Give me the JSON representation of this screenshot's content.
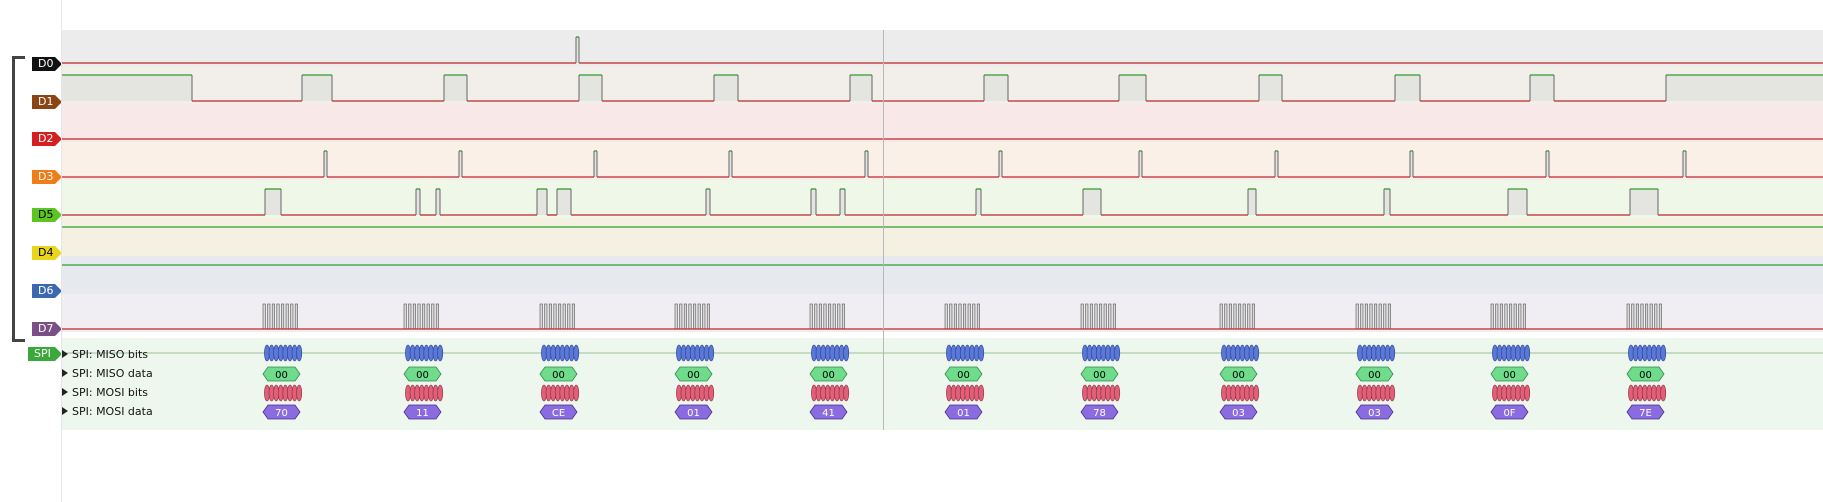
{
  "channels": [
    {
      "id": "D0",
      "color": "#111111",
      "bg": "#ececec"
    },
    {
      "id": "D1",
      "color": "#8b4513",
      "bg": "#f2eeea"
    },
    {
      "id": "D2",
      "color": "#d42020",
      "bg": "#f9e8e8"
    },
    {
      "id": "D3",
      "color": "#ef7d1a",
      "bg": "#fbf0e8"
    },
    {
      "id": "D5",
      "color": "#5cc520",
      "bg": "#eef7e8"
    },
    {
      "id": "D4",
      "color": "#e8d51c",
      "bg": "#f4f1e2"
    },
    {
      "id": "D6",
      "color": "#3c68b0",
      "bg": "#e6e9ee"
    },
    {
      "id": "D7",
      "color": "#7a4f86",
      "bg": "#f0eef2"
    }
  ],
  "spi": {
    "tag": "SPI",
    "tag_color": "#3aa83a",
    "rows": [
      {
        "label": "SPI: MISO bits"
      },
      {
        "label": "SPI: MISO data"
      },
      {
        "label": "SPI: MOSI bits"
      },
      {
        "label": "SPI: MOSI data"
      }
    ],
    "miso_data": [
      "00",
      "00",
      "00",
      "00",
      "00",
      "00",
      "00",
      "00",
      "00",
      "00",
      "00"
    ],
    "mosi_data": [
      "70",
      "11",
      "CE",
      "01",
      "41",
      "01",
      "78",
      "03",
      "03",
      "0F",
      "7E"
    ],
    "colors": {
      "miso_bits": "#5a78d8",
      "miso_data": "#6fdc8c",
      "mosi_bits": "#e0607a",
      "mosi_data": "#8b6be0"
    }
  }
}
